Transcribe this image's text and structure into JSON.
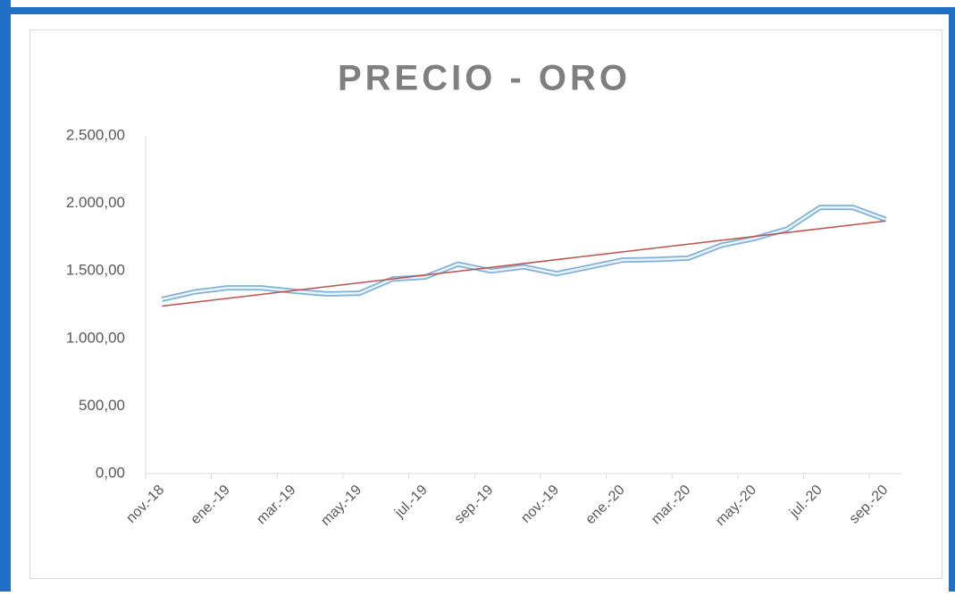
{
  "chart_data": {
    "type": "line",
    "title": "PRECIO - ORO",
    "categories": [
      "nov.-18",
      null,
      "ene.-19",
      null,
      "mar.-19",
      null,
      "may.-19",
      null,
      "jul.-19",
      null,
      "sep.-19",
      null,
      "nov.-19",
      null,
      "ene.-20",
      null,
      "mar.-20",
      null,
      "may.-20",
      null,
      "jul.-20",
      null,
      "sep.-20"
    ],
    "series": [
      {
        "color": "#7fb2da",
        "values": [
          1290,
          1345,
          1375,
          1375,
          1350,
          1330,
          1335,
          1440,
          1455,
          1550,
          1500,
          1530,
          1480,
          1530,
          1580,
          1585,
          1595,
          1690,
          1740,
          1810,
          1970,
          1970,
          1880
        ]
      }
    ],
    "trendline": {
      "color": "#c0504d",
      "start": 1240,
      "end": 1870
    },
    "ylim": [
      0,
      2500
    ],
    "yticks": [
      {
        "value": 0,
        "label": "0,00"
      },
      {
        "value": 500,
        "label": "500,00"
      },
      {
        "value": 1000,
        "label": "1.000,00"
      },
      {
        "value": 1500,
        "label": "1.500,00"
      },
      {
        "value": 2000,
        "label": "2.000,00"
      },
      {
        "value": 2500,
        "label": "2.500,00"
      }
    ],
    "grid": false
  }
}
